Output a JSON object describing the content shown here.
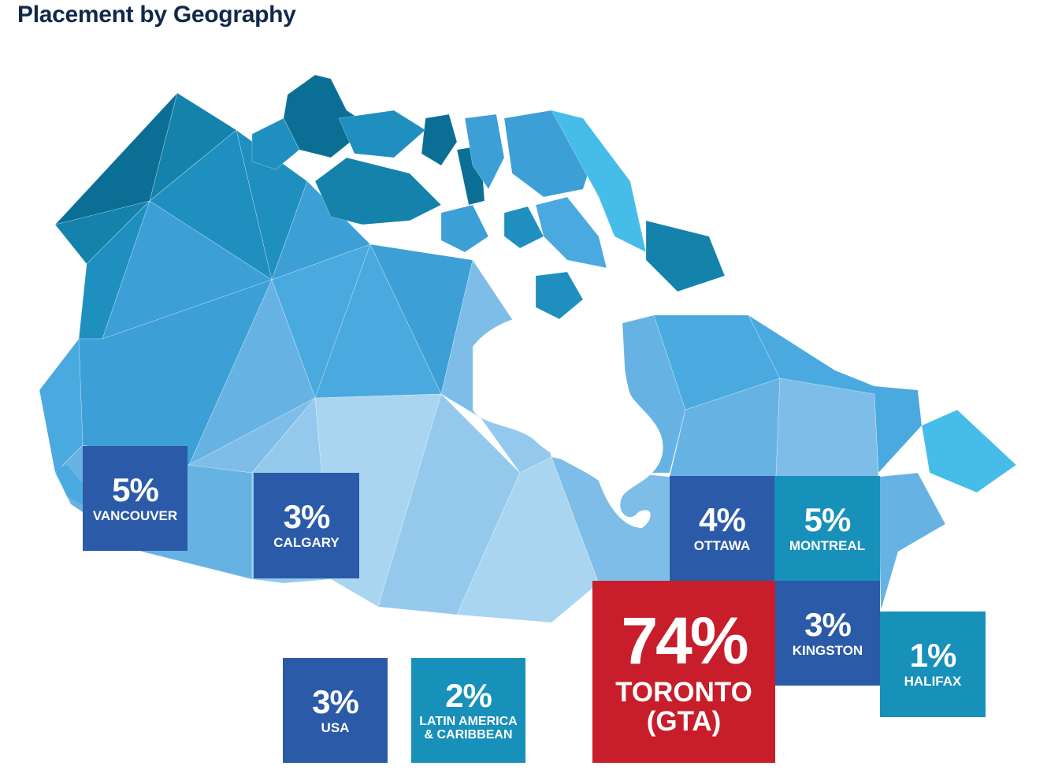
{
  "title": "Placement by Geography",
  "colors": {
    "dark_blue": "#2b5aa8",
    "teal": "#1790ba",
    "red": "#c81d2a",
    "title": "#12284b",
    "map_palette": [
      "#0b6f95",
      "#1482ab",
      "#1f8fc0",
      "#3c9fd6",
      "#4aa9de",
      "#66b3e3",
      "#7dbde8",
      "#94c9ed",
      "#aad5f1",
      "#46bde8"
    ]
  },
  "placements": [
    {
      "id": "vancouver",
      "percent": "5%",
      "label": "VANCOUVER",
      "value": 5,
      "color": "dark_blue"
    },
    {
      "id": "calgary",
      "percent": "3%",
      "label": "CALGARY",
      "value": 3,
      "color": "dark_blue"
    },
    {
      "id": "ottawa",
      "percent": "4%",
      "label": "OTTAWA",
      "value": 4,
      "color": "dark_blue"
    },
    {
      "id": "montreal",
      "percent": "5%",
      "label": "MONTREAL",
      "value": 5,
      "color": "teal"
    },
    {
      "id": "toronto",
      "percent": "74%",
      "label": "TORONTO (GTA)",
      "value": 74,
      "color": "red"
    },
    {
      "id": "kingston",
      "percent": "3%",
      "label": "KINGSTON",
      "value": 3,
      "color": "dark_blue"
    },
    {
      "id": "halifax",
      "percent": "1%",
      "label": "HALIFAX",
      "value": 1,
      "color": "teal"
    },
    {
      "id": "usa",
      "percent": "3%",
      "label": "USA",
      "value": 3,
      "color": "dark_blue"
    },
    {
      "id": "latam",
      "percent": "2%",
      "label": "LATIN AMERICA & CARIBBEAN",
      "value": 2,
      "color": "teal"
    }
  ]
}
